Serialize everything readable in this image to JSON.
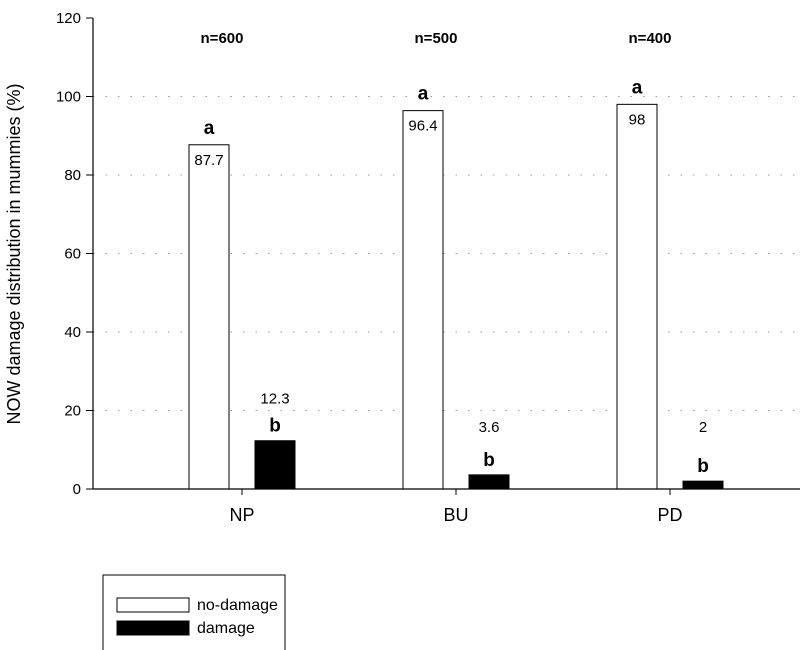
{
  "chart_data": {
    "type": "bar",
    "categories": [
      "NP",
      "BU",
      "PD"
    ],
    "series": [
      {
        "name": "no-damage",
        "values": [
          87.7,
          96.4,
          98
        ],
        "value_labels": [
          "87.7",
          "96.4",
          "98"
        ],
        "letters": [
          "a",
          "a",
          "a"
        ],
        "fill": "#ffffff",
        "stroke": "#000000"
      },
      {
        "name": "damage",
        "values": [
          12.3,
          3.6,
          2
        ],
        "value_labels": [
          "12.3",
          "3.6",
          "2"
        ],
        "letters": [
          "b",
          "b",
          "b"
        ],
        "fill": "#000000",
        "stroke": "#000000"
      }
    ],
    "sample_sizes": [
      "n=600",
      "n=500",
      "n=400"
    ],
    "ylabel": "NOW damage distribution in mummies (%)",
    "xlabel": "",
    "ylim": [
      0,
      120
    ],
    "yticks": [
      "0",
      "20",
      "40",
      "60",
      "80",
      "100",
      "120"
    ],
    "grid": "horizontal dotted",
    "legend_position": "bottom-left"
  }
}
